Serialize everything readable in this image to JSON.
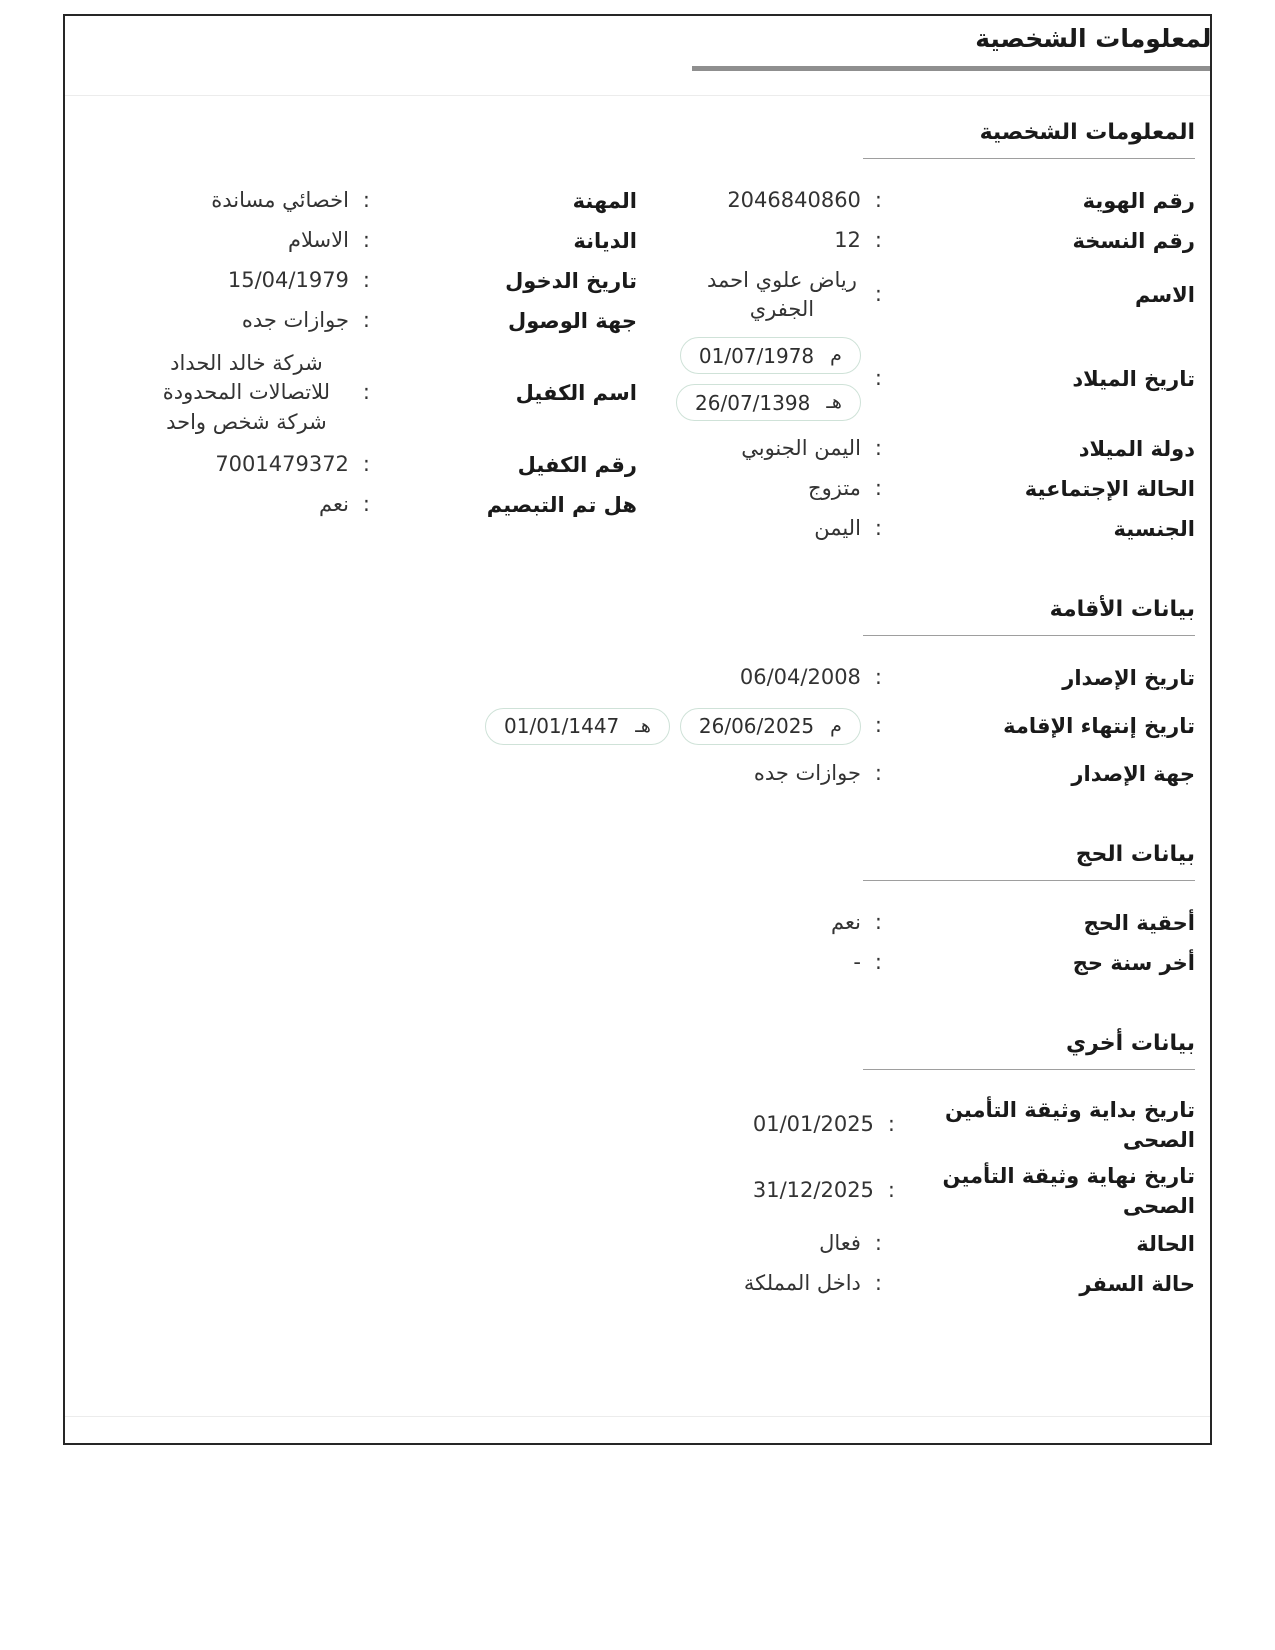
{
  "ui": {
    "colon": ":"
  },
  "colors": {
    "card_border": "#262626",
    "tab_indicator": "#8f8f8f",
    "section_underline": "#9e9e9e",
    "divider": "#ececec",
    "chip_border": "#cfe2d8",
    "label_text": "#1a1a1a",
    "value_text": "#333333"
  },
  "tab": {
    "title": "المعلومات الشخصية"
  },
  "sections": {
    "personal": {
      "title": "المعلومات الشخصية"
    },
    "residence": {
      "title": "بيانات الأقامة"
    },
    "hajj": {
      "title": "بيانات الحج"
    },
    "other": {
      "title": "بيانات أخري"
    }
  },
  "fields": {
    "id_number": {
      "label": "رقم الهوية",
      "value": "2046840860"
    },
    "version_number": {
      "label": "رقم النسخة",
      "value": "12"
    },
    "name": {
      "label": "الاسم",
      "value": "رياض علوي احمد الجفري"
    },
    "birth_date": {
      "label": "تاريخ الميلاد",
      "gregorian": {
        "era": "م",
        "date": "01/07/1978"
      },
      "hijri": {
        "era": "هـ",
        "date": "26/07/1398"
      }
    },
    "birth_country": {
      "label": "دولة الميلاد",
      "value": "اليمن الجنوبي"
    },
    "marital_status": {
      "label": "الحالة الإجتماعية",
      "value": "متزوج"
    },
    "nationality": {
      "label": "الجنسية",
      "value": "اليمن"
    },
    "occupation": {
      "label": "المهنة",
      "value": "اخصائي مساندة"
    },
    "religion": {
      "label": "الديانة",
      "value": "الاسلام"
    },
    "entry_date": {
      "label": "تاريخ الدخول",
      "value": "15/04/1979"
    },
    "arrival_port": {
      "label": "جهة الوصول",
      "value": "جوازات جده"
    },
    "sponsor_name": {
      "label": "اسم الكفيل",
      "value": "شركة خالد الحداد للاتصالات المحدودة شركة شخص واحد"
    },
    "sponsor_number": {
      "label": "رقم الكفيل",
      "value": "7001479372"
    },
    "fingerprinted": {
      "label": "هل تم التبصيم",
      "value": "نعم"
    },
    "issue_date": {
      "label": "تاريخ الإصدار",
      "value": "06/04/2008"
    },
    "iqama_expiry": {
      "label": "تاريخ إنتهاء الإقامة",
      "gregorian": {
        "era": "م",
        "date": "26/06/2025"
      },
      "hijri": {
        "era": "هـ",
        "date": "01/01/1447"
      }
    },
    "issue_authority": {
      "label": "جهة الإصدار",
      "value": "جوازات جده"
    },
    "hajj_eligibility": {
      "label": "أحقية الحج",
      "value": "نعم"
    },
    "last_hajj_year": {
      "label": "أخر سنة حج",
      "value": "-"
    },
    "insurance_start": {
      "label": "تاريخ بداية وثيقة التأمين الصحى",
      "value": "01/01/2025"
    },
    "insurance_end": {
      "label": "تاريخ نهاية وثيقة التأمين الصحى",
      "value": "31/12/2025"
    },
    "status": {
      "label": "الحالة",
      "value": "فعال"
    },
    "travel_status": {
      "label": "حالة السفر",
      "value": "داخل المملكة"
    }
  }
}
